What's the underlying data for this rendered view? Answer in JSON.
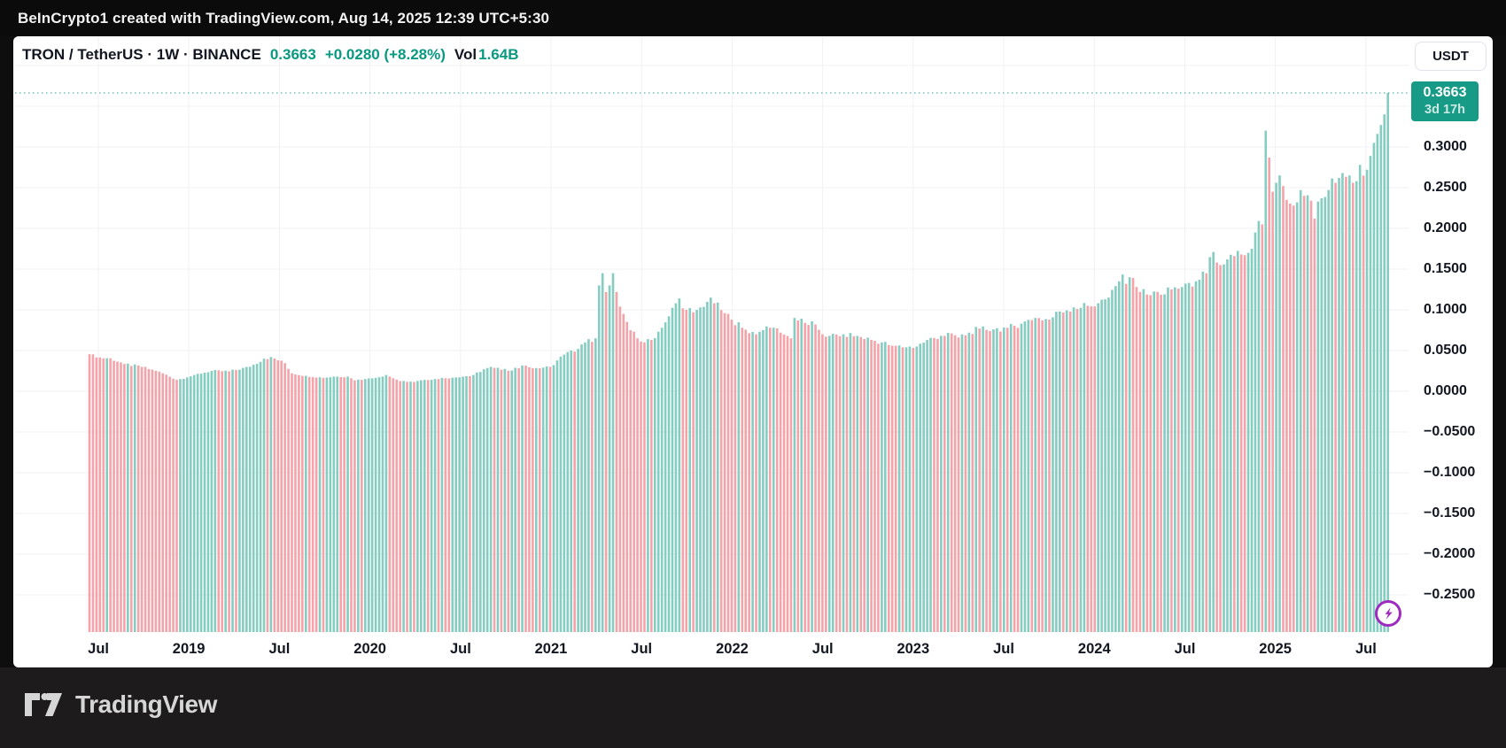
{
  "topbar": {
    "attribution": "BeInCrypto1 created with TradingView.com, Aug 14, 2025 12:39 UTC+5:30"
  },
  "header": {
    "symbol_title": "TRON / TetherUS · 1W · BINANCE",
    "price": "0.3663",
    "change": "+0.0280 (+8.28%)",
    "vol_label": "Vol",
    "volume": "1.64B"
  },
  "price_scale": {
    "currency_button": "USDT",
    "last_price": "0.3663",
    "countdown": "3d 17h"
  },
  "footer": {
    "brand": "TradingView"
  },
  "chart_data": {
    "type": "bar",
    "title": "TRON / TetherUS, 1W, BINANCE — weekly price columns",
    "xlabel": "",
    "ylabel": "Price (USDT)",
    "ylim": [
      -0.2946,
      0.4359
    ],
    "grid": true,
    "last_value": 0.3663,
    "n_bars": 373,
    "x_ticks": [
      {
        "label": "Jul",
        "f": 0.0598
      },
      {
        "label": "2019",
        "f": 0.1247
      },
      {
        "label": "Jul",
        "f": 0.1897
      },
      {
        "label": "2020",
        "f": 0.2547
      },
      {
        "label": "Jul",
        "f": 0.3197
      },
      {
        "label": "2021",
        "f": 0.3846
      },
      {
        "label": "Jul",
        "f": 0.4496
      },
      {
        "label": "2022",
        "f": 0.5146
      },
      {
        "label": "Jul",
        "f": 0.5796
      },
      {
        "label": "2023",
        "f": 0.6445
      },
      {
        "label": "Jul",
        "f": 0.7095
      },
      {
        "label": "2024",
        "f": 0.7745
      },
      {
        "label": "Jul",
        "f": 0.8395
      },
      {
        "label": "2025",
        "f": 0.9044
      },
      {
        "label": "Jul",
        "f": 0.9694
      }
    ],
    "y_ticks": [
      {
        "label": "0.3000",
        "value": 0.3
      },
      {
        "label": "0.2500",
        "value": 0.25
      },
      {
        "label": "0.2000",
        "value": 0.2
      },
      {
        "label": "0.1500",
        "value": 0.15
      },
      {
        "label": "0.1000",
        "value": 0.1
      },
      {
        "label": "0.0500",
        "value": 0.05
      },
      {
        "label": "0.0000",
        "value": 0.0
      },
      {
        "label": "−0.0500",
        "value": -0.05
      },
      {
        "label": "−0.1000",
        "value": -0.1
      },
      {
        "label": "−0.1500",
        "value": -0.15
      },
      {
        "label": "−0.2000",
        "value": -0.2
      },
      {
        "label": "−0.2500",
        "value": -0.25
      }
    ],
    "y_grid_extra": [
      0.4,
      0.35
    ],
    "jitter": 0.05,
    "anchors": [
      [
        0,
        0.0455
      ],
      [
        2,
        0.0415
      ],
      [
        6,
        0.0405
      ],
      [
        10,
        0.0335
      ],
      [
        15,
        0.03
      ],
      [
        19,
        0.025
      ],
      [
        21,
        0.022
      ],
      [
        25,
        0.014
      ],
      [
        28,
        0.017
      ],
      [
        30,
        0.02
      ],
      [
        35,
        0.025
      ],
      [
        40,
        0.0245
      ],
      [
        46,
        0.03
      ],
      [
        50,
        0.04
      ],
      [
        52,
        0.042
      ],
      [
        54,
        0.038
      ],
      [
        56,
        0.0345
      ],
      [
        58,
        0.022
      ],
      [
        62,
        0.019
      ],
      [
        67,
        0.0165
      ],
      [
        70,
        0.018
      ],
      [
        74,
        0.018
      ],
      [
        76,
        0.0135
      ],
      [
        79,
        0.015
      ],
      [
        82,
        0.0165
      ],
      [
        85,
        0.02
      ],
      [
        89,
        0.0125
      ],
      [
        93,
        0.0115
      ],
      [
        96,
        0.014
      ],
      [
        102,
        0.016
      ],
      [
        105,
        0.017
      ],
      [
        109,
        0.0185
      ],
      [
        113,
        0.027
      ],
      [
        115,
        0.03
      ],
      [
        118,
        0.0265
      ],
      [
        121,
        0.0255
      ],
      [
        124,
        0.0315
      ],
      [
        128,
        0.0285
      ],
      [
        132,
        0.03
      ],
      [
        136,
        0.045
      ],
      [
        140,
        0.052
      ],
      [
        142,
        0.06
      ],
      [
        145,
        0.065
      ],
      [
        146,
        0.13
      ],
      [
        147,
        0.145
      ],
      [
        148,
        0.122
      ],
      [
        149,
        0.13
      ],
      [
        150,
        0.145
      ],
      [
        151,
        0.122
      ],
      [
        153,
        0.095
      ],
      [
        155,
        0.075
      ],
      [
        157,
        0.065
      ],
      [
        159,
        0.06
      ],
      [
        161,
        0.063
      ],
      [
        164,
        0.078
      ],
      [
        166,
        0.092
      ],
      [
        168,
        0.108
      ],
      [
        169,
        0.114
      ],
      [
        171,
        0.1
      ],
      [
        173,
        0.097
      ],
      [
        175,
        0.103
      ],
      [
        178,
        0.115
      ],
      [
        179,
        0.108
      ],
      [
        182,
        0.096
      ],
      [
        184,
        0.088
      ],
      [
        187,
        0.078
      ],
      [
        191,
        0.07
      ],
      [
        193,
        0.075
      ],
      [
        196,
        0.078
      ],
      [
        198,
        0.072
      ],
      [
        201,
        0.065
      ],
      [
        202,
        0.09
      ],
      [
        205,
        0.084
      ],
      [
        208,
        0.082
      ],
      [
        210,
        0.07
      ],
      [
        212,
        0.068
      ],
      [
        216,
        0.07
      ],
      [
        220,
        0.068
      ],
      [
        224,
        0.063
      ],
      [
        227,
        0.06
      ],
      [
        230,
        0.056
      ],
      [
        234,
        0.054
      ],
      [
        237,
        0.055
      ],
      [
        240,
        0.063
      ],
      [
        244,
        0.068
      ],
      [
        247,
        0.071
      ],
      [
        249,
        0.066
      ],
      [
        252,
        0.072
      ],
      [
        255,
        0.077
      ],
      [
        259,
        0.076
      ],
      [
        263,
        0.078
      ],
      [
        267,
        0.083
      ],
      [
        271,
        0.09
      ],
      [
        275,
        0.088
      ],
      [
        278,
        0.098
      ],
      [
        282,
        0.103
      ],
      [
        286,
        0.105
      ],
      [
        289,
        0.108
      ],
      [
        292,
        0.115
      ],
      [
        295,
        0.135
      ],
      [
        298,
        0.14
      ],
      [
        300,
        0.128
      ],
      [
        301,
        0.122
      ],
      [
        304,
        0.118
      ],
      [
        306,
        0.122
      ],
      [
        308,
        0.119
      ],
      [
        310,
        0.125
      ],
      [
        313,
        0.128
      ],
      [
        315,
        0.133
      ],
      [
        317,
        0.135
      ],
      [
        318,
        0.137
      ],
      [
        320,
        0.145
      ],
      [
        322,
        0.171
      ],
      [
        323,
        0.158
      ],
      [
        324,
        0.155
      ],
      [
        326,
        0.162
      ],
      [
        328,
        0.166
      ],
      [
        330,
        0.168
      ],
      [
        332,
        0.17
      ],
      [
        333,
        0.175
      ],
      [
        334,
        0.195
      ],
      [
        336,
        0.205
      ],
      [
        337,
        0.32
      ],
      [
        338,
        0.287
      ],
      [
        339,
        0.245
      ],
      [
        340,
        0.256
      ],
      [
        341,
        0.265
      ],
      [
        342,
        0.252
      ],
      [
        343,
        0.235
      ],
      [
        345,
        0.228
      ],
      [
        346,
        0.232
      ],
      [
        347,
        0.247
      ],
      [
        348,
        0.24
      ],
      [
        350,
        0.234
      ],
      [
        351,
        0.212
      ],
      [
        352,
        0.233
      ],
      [
        353,
        0.237
      ],
      [
        355,
        0.247
      ],
      [
        357,
        0.256
      ],
      [
        358,
        0.262
      ],
      [
        359,
        0.268
      ],
      [
        361,
        0.265
      ],
      [
        362,
        0.256
      ],
      [
        363,
        0.258
      ],
      [
        364,
        0.278
      ],
      [
        366,
        0.272
      ],
      [
        367,
        0.289
      ],
      [
        368,
        0.305
      ],
      [
        369,
        0.316
      ],
      [
        370,
        0.327
      ],
      [
        371,
        0.34
      ],
      [
        372,
        0.3663
      ]
    ],
    "colors": {
      "up": "#85ccc1",
      "down": "#f4a3a9",
      "price_line": "#26a69a",
      "badge": "#189b86",
      "accent_teal": "#089981",
      "grid": "#f0f1f4",
      "text": "#131722",
      "flash_purple": "#9d2bbf"
    },
    "legend_position": "none"
  }
}
